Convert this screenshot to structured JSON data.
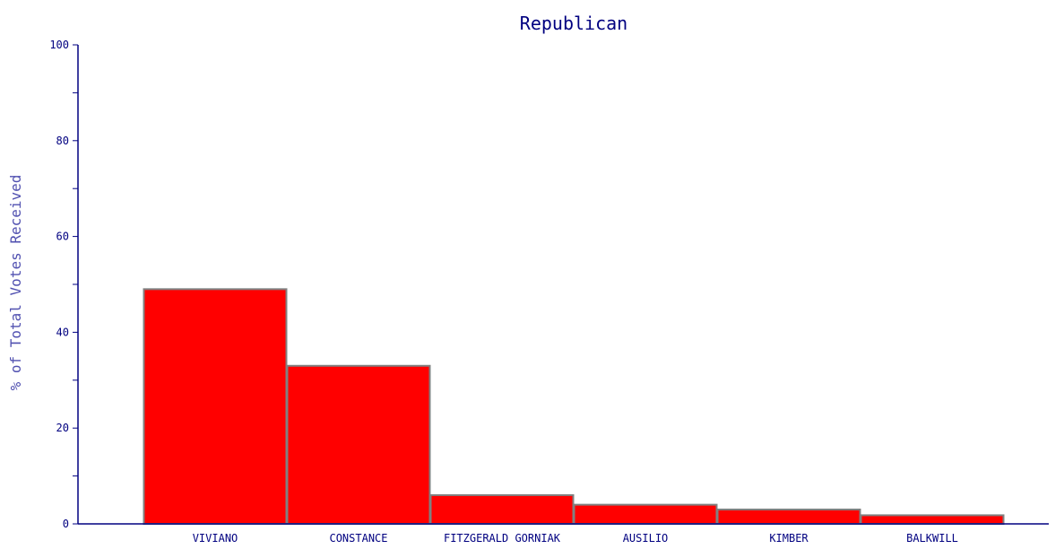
{
  "chart_data": {
    "type": "bar",
    "title": "Republican",
    "xlabel": "",
    "ylabel": "% of Total Votes Received",
    "categories": [
      "VIVIANO",
      "CONSTANCE",
      "FITZGERALD GORNIAK",
      "AUSILIO",
      "KIMBER",
      "BALKWILL"
    ],
    "values": [
      49,
      33,
      6,
      4,
      3,
      1.8
    ],
    "ylim": [
      0,
      100
    ],
    "yticks": [
      0,
      20,
      40,
      60,
      80,
      100
    ],
    "y_minor_step": 10,
    "grid": false,
    "legend": "none",
    "colors": {
      "bar_fill": "#ff0000",
      "bar_stroke": "#808080",
      "axis": "#000080",
      "text": "#000080",
      "ylabel": "#5050b0"
    }
  }
}
